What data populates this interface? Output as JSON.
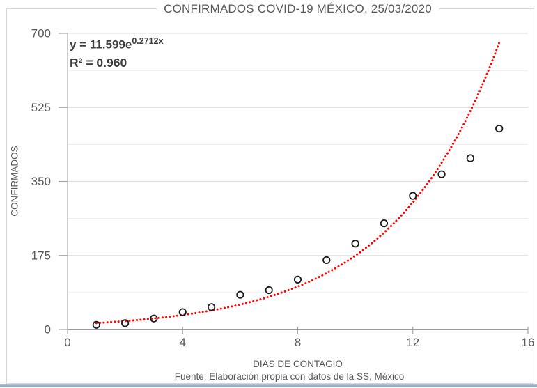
{
  "title": "CONFIRMADOS COVID-19 MÉXICO, 25/03/2020",
  "equation": {
    "formula_base": "y = 11.599e",
    "formula_exponent": "0.2712x",
    "r_squared": "R² = 0.960"
  },
  "footer": "Fuente: Elaboración propia con datos de la SS, México",
  "colors": {
    "trendline": "#ff0000",
    "marker_stroke": "#1a1a1a",
    "text_gray": "#595959",
    "bottom_bar": "#86a3c0"
  },
  "chart_data": {
    "type": "scatter",
    "title": "CONFIRMADOS COVID-19 MÉXICO, 25/03/2020",
    "xlabel": "DIAS DE CONTAGIO",
    "ylabel": "CONFIRMADOS",
    "x": [
      1,
      2,
      3,
      4,
      5,
      6,
      7,
      8,
      9,
      10,
      11,
      12,
      13,
      14,
      15
    ],
    "y": [
      11,
      15,
      26,
      41,
      53,
      82,
      93,
      118,
      164,
      203,
      251,
      316,
      367,
      405,
      475
    ],
    "xlim": [
      0,
      16
    ],
    "ylim": [
      0,
      700
    ],
    "x_ticks": [
      0,
      4,
      8,
      12,
      16
    ],
    "y_ticks": [
      0,
      175,
      350,
      525,
      700
    ],
    "y_minor_gridlines": [
      87.5,
      262.5,
      437.5,
      612.5
    ],
    "grid": "horizontal-only",
    "legend": "none",
    "marker": {
      "shape": "open-circle",
      "stroke": "#1a1a1a",
      "fill": "none"
    },
    "trendline": {
      "type": "exponential",
      "a": 11.599,
      "b": 0.2712,
      "r_squared": 0.96,
      "x_range": [
        1,
        15.0
      ],
      "style": "dotted",
      "color": "#ff0000"
    }
  }
}
